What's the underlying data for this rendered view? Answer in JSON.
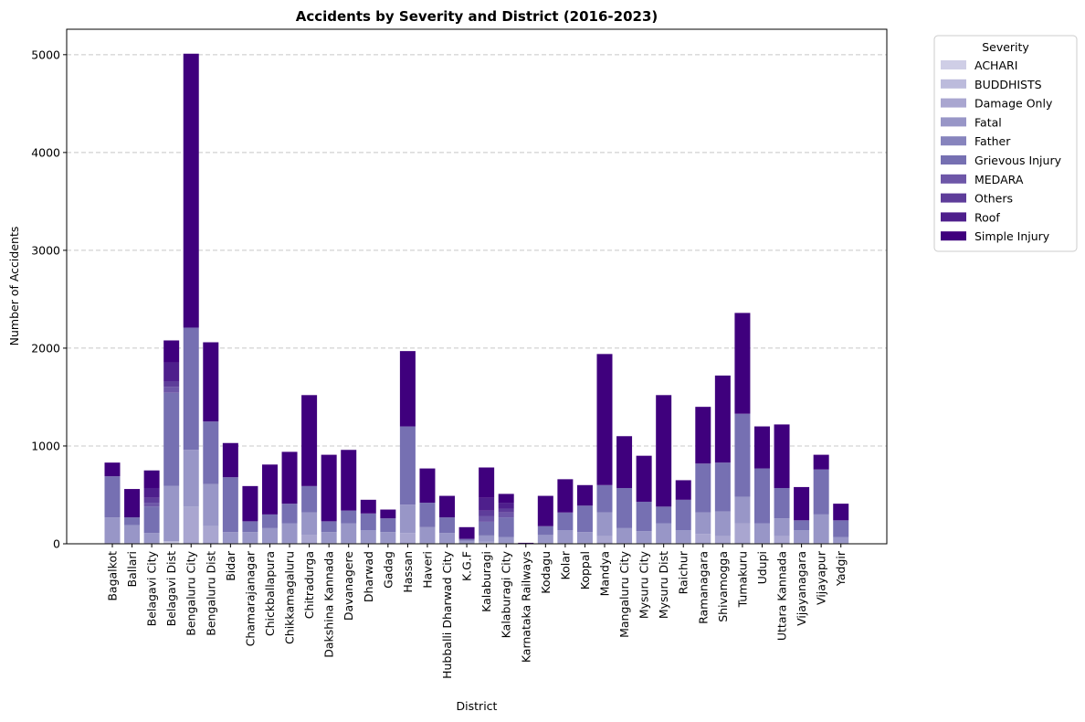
{
  "chart_data": {
    "type": "bar",
    "stacked": true,
    "title": "Accidents by Severity and District (2016-2023)",
    "xlabel": "District",
    "ylabel": "Number of Accidents",
    "ylim": [
      0,
      5260
    ],
    "yticks": [
      0,
      1000,
      2000,
      3000,
      4000,
      5000
    ],
    "grid": "y-dashed",
    "legend_title": "Severity",
    "legend_position": "outside-top-right",
    "categories": [
      "Bagalkot",
      "Ballari",
      "Belagavi City",
      "Belagavi Dist",
      "Bengaluru City",
      "Bengaluru Dist",
      "Bidar",
      "Chamarajanagar",
      "Chickballapura",
      "Chikkamagaluru",
      "Chitradurga",
      "Dakshina Kannada",
      "Davanagere",
      "Dharwad",
      "Gadag",
      "Hassan",
      "Haveri",
      "Hubballi Dharwad City",
      "K.G.F",
      "Kalaburagi",
      "Kalaburagi City",
      "Karnataka Railways",
      "Kodagu",
      "Kolar",
      "Koppal",
      "Mandya",
      "Mangaluru City",
      "Mysuru City",
      "Mysuru Dist",
      "Raichur",
      "Ramanagara",
      "Shivamogga",
      "Tumakuru",
      "Udupi",
      "Uttara Kannada",
      "Vijayanagara",
      "Vijayapur",
      "Yadgir"
    ],
    "series": [
      {
        "name": "ACHARI",
        "color": "#cfcee6",
        "values": [
          0,
          0,
          0,
          12,
          0,
          0,
          0,
          0,
          0,
          0,
          0,
          0,
          0,
          0,
          0,
          0,
          0,
          0,
          0,
          5,
          0,
          0,
          0,
          0,
          0,
          0,
          0,
          0,
          0,
          0,
          0,
          0,
          0,
          0,
          0,
          0,
          0,
          0
        ]
      },
      {
        "name": "BUDDHISTS",
        "color": "#bcbbdc",
        "values": [
          0,
          0,
          0,
          10,
          0,
          0,
          0,
          0,
          0,
          0,
          0,
          0,
          0,
          0,
          0,
          0,
          0,
          0,
          0,
          5,
          0,
          0,
          0,
          0,
          0,
          0,
          0,
          0,
          0,
          0,
          0,
          0,
          0,
          0,
          0,
          0,
          0,
          0
        ]
      },
      {
        "name": "Damage Only",
        "color": "#a9a6d0",
        "values": [
          10,
          10,
          10,
          5,
          380,
          180,
          10,
          10,
          10,
          10,
          90,
          10,
          10,
          10,
          10,
          110,
          10,
          10,
          10,
          10,
          10,
          0,
          10,
          10,
          10,
          80,
          10,
          10,
          10,
          10,
          100,
          80,
          210,
          10,
          80,
          10,
          10,
          10
        ]
      },
      {
        "name": "Fatal",
        "color": "#9896c7",
        "values": [
          260,
          180,
          100,
          555,
          580,
          430,
          110,
          110,
          150,
          200,
          230,
          110,
          200,
          130,
          110,
          290,
          160,
          100,
          20,
          60,
          60,
          5,
          80,
          130,
          110,
          240,
          150,
          120,
          200,
          130,
          220,
          250,
          270,
          200,
          180,
          130,
          290,
          60
        ]
      },
      {
        "name": "Father",
        "color": "#8784bd",
        "values": [
          0,
          0,
          0,
          12,
          0,
          0,
          0,
          0,
          0,
          0,
          0,
          0,
          0,
          0,
          0,
          0,
          0,
          0,
          0,
          5,
          0,
          0,
          0,
          0,
          0,
          0,
          0,
          0,
          0,
          0,
          0,
          0,
          0,
          0,
          0,
          0,
          0,
          0
        ]
      },
      {
        "name": "Grievous Injury",
        "color": "#7670b2",
        "values": [
          420,
          80,
          270,
          950,
          1250,
          640,
          560,
          110,
          140,
          200,
          270,
          110,
          130,
          170,
          140,
          800,
          250,
          160,
          20,
          140,
          200,
          0,
          90,
          180,
          270,
          280,
          410,
          300,
          170,
          310,
          500,
          500,
          850,
          560,
          310,
          100,
          460,
          170
        ]
      },
      {
        "name": "MEDARA",
        "color": "#6e57a8",
        "values": [
          0,
          0,
          40,
          60,
          0,
          0,
          0,
          0,
          0,
          0,
          0,
          0,
          0,
          0,
          0,
          0,
          0,
          0,
          0,
          60,
          50,
          0,
          0,
          0,
          0,
          0,
          0,
          0,
          0,
          0,
          0,
          0,
          0,
          0,
          0,
          0,
          0,
          0
        ]
      },
      {
        "name": "Others",
        "color": "#5e3d9a",
        "values": [
          0,
          0,
          50,
          55,
          0,
          0,
          0,
          0,
          0,
          0,
          0,
          0,
          0,
          0,
          0,
          0,
          0,
          0,
          0,
          55,
          40,
          0,
          0,
          0,
          0,
          0,
          0,
          0,
          0,
          0,
          0,
          0,
          0,
          0,
          0,
          0,
          0,
          0
        ]
      },
      {
        "name": "Roof",
        "color": "#4e1f8c",
        "values": [
          0,
          0,
          100,
          195,
          0,
          0,
          0,
          0,
          0,
          0,
          0,
          0,
          0,
          0,
          0,
          0,
          0,
          0,
          0,
          130,
          60,
          0,
          0,
          0,
          0,
          0,
          0,
          0,
          0,
          0,
          0,
          0,
          0,
          0,
          0,
          0,
          0,
          0
        ]
      },
      {
        "name": "Simple Injury",
        "color": "#3f007d",
        "values": [
          140,
          290,
          180,
          225,
          2800,
          810,
          350,
          360,
          510,
          530,
          930,
          680,
          620,
          140,
          90,
          770,
          350,
          220,
          120,
          310,
          90,
          5,
          310,
          340,
          210,
          1340,
          530,
          470,
          1140,
          200,
          580,
          890,
          1030,
          430,
          650,
          340,
          150,
          170
        ]
      }
    ]
  }
}
